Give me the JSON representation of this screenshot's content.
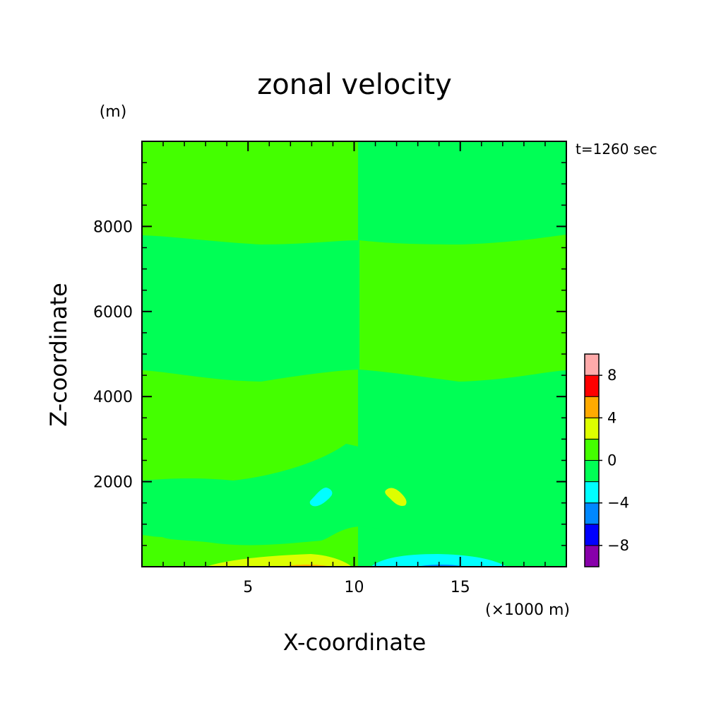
{
  "chart_data": {
    "type": "heatmap",
    "title": "zonal velocity",
    "xlabel": "X-coordinate",
    "ylabel": "Z-coordinate",
    "x_unit": "(×1000 m)",
    "y_unit": "(m)",
    "time_label": "t=1260 sec",
    "xlim": [
      0,
      20
    ],
    "ylim": [
      0,
      10000
    ],
    "x_ticks": [
      5,
      10,
      15
    ],
    "x_tick_labels": [
      "5",
      "10",
      "15"
    ],
    "y_ticks": [
      2000,
      4000,
      6000,
      8000
    ],
    "y_tick_labels": [
      "2000",
      "4000",
      "6000",
      "8000"
    ],
    "x_minor_step": 1,
    "y_minor_step": 500,
    "colorbar": {
      "bounds": [
        -10,
        -8,
        -6,
        -4,
        -2,
        0,
        2,
        4,
        6,
        8,
        10
      ],
      "colors": [
        "#8800aa",
        "#0000ff",
        "#0088ff",
        "#00ffff",
        "#00ff55",
        "#44ff00",
        "#ddff00",
        "#ffaa00",
        "#ff0000",
        "#ffaaaa"
      ],
      "tick_values": [
        -8,
        -4,
        0,
        4,
        8
      ],
      "tick_labels": [
        "−8",
        "−4",
        "0",
        "4",
        "8"
      ]
    },
    "fields": [
      {
        "name": "background",
        "value_range": [
          0,
          2
        ],
        "color": "#44ff00"
      },
      {
        "name": "band 7600-10000 right",
        "x": [
          10,
          20
        ],
        "z": [
          0,
          7700
        ],
        "value_range": [
          -2,
          0
        ],
        "color": "#00ff55"
      },
      {
        "name": "band 4600-7700 left",
        "x": [
          0,
          10
        ],
        "z": [
          4600,
          7700
        ],
        "value_range": [
          -2,
          0
        ],
        "color": "#00ff55"
      },
      {
        "name": "band 700-2900 left",
        "x": [
          0,
          10
        ],
        "z": [
          700,
          2900
        ],
        "value_range": [
          -2,
          0
        ],
        "color": "#00ff55"
      },
      {
        "name": "jet left surface",
        "x": [
          2,
          10
        ],
        "z": [
          0,
          300
        ],
        "value_range": [
          2,
          4
        ],
        "color": "#ddff00"
      },
      {
        "name": "jet right surface",
        "x": [
          10.5,
          18
        ],
        "z": [
          0,
          300
        ],
        "value_range": [
          -4,
          -2
        ],
        "color": "#00ffff"
      },
      {
        "name": "blob left",
        "x": [
          8,
          9
        ],
        "z": [
          1450,
          1850
        ],
        "value_range": [
          -4,
          -2
        ],
        "color": "#00ffff"
      },
      {
        "name": "blob right",
        "x": [
          11.3,
          12.5
        ],
        "z": [
          1450,
          1850
        ],
        "value_range": [
          2,
          4
        ],
        "color": "#ddff00"
      }
    ]
  }
}
